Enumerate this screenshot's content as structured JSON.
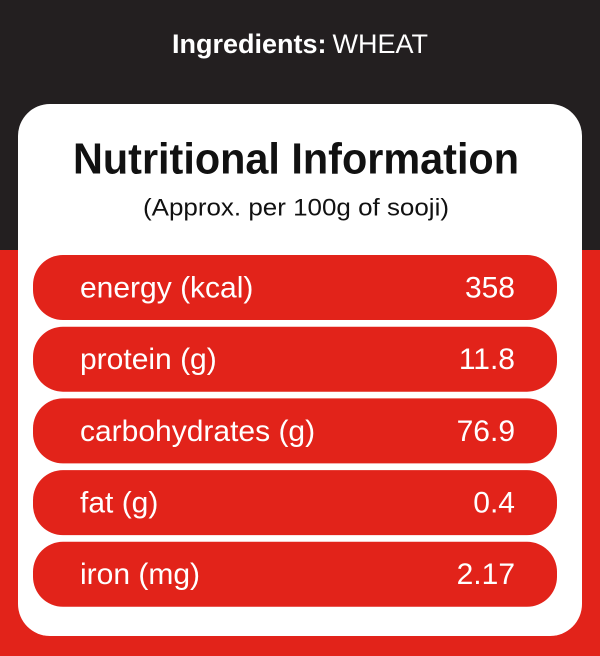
{
  "header": {
    "label": "Ingredients:",
    "value": "WHEAT"
  },
  "card": {
    "title": "Nutritional  Information",
    "subtitle": "(Approx. per 100g of sooji)"
  },
  "rows": [
    {
      "label": "energy (kcal)",
      "value": "358"
    },
    {
      "label": "protein (g)",
      "value": "11.8"
    },
    {
      "label": "carbohydrates (g)",
      "value": "76.9"
    },
    {
      "label": "fat (g)",
      "value": "0.4"
    },
    {
      "label": "iron (mg)",
      "value": "2.17"
    }
  ]
}
